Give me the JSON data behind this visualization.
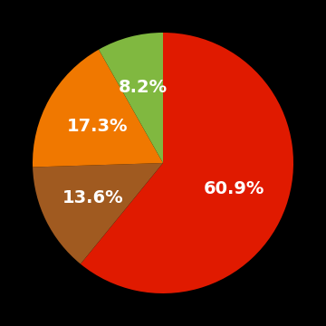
{
  "slices": [
    60.9,
    13.6,
    17.3,
    8.2
  ],
  "colors": [
    "#e01a00",
    "#a05a20",
    "#f07800",
    "#80b840"
  ],
  "labels": [
    "60.9%",
    "13.6%",
    "17.3%",
    "8.2%"
  ],
  "label_radii": [
    0.58,
    0.6,
    0.58,
    0.6
  ],
  "background_color": "#000000",
  "text_color": "#ffffff",
  "text_fontsize": 14,
  "startangle": 90,
  "figsize": [
    3.6,
    3.6
  ],
  "dpi": 100
}
